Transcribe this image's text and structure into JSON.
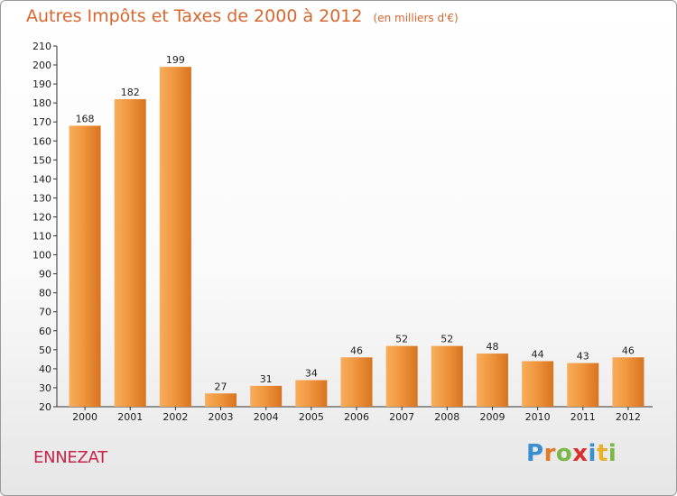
{
  "title": "Autres Impôts et Taxes de 2000 à 2012",
  "unit_note": "(en milliers d'€)",
  "commune": "ENNEZAT",
  "logo": [
    "P",
    "r",
    "o",
    "x",
    "i",
    "t",
    "i"
  ],
  "colors": {
    "bar": "#f0963f",
    "bar_light": "#f8ad5a",
    "bar_dark": "#d8741f",
    "title": "#d9662e",
    "commune": "#c8234b"
  },
  "chart_data": {
    "type": "bar",
    "title": "Autres Impôts et Taxes de 2000 à 2012",
    "subtitle": "(en milliers d'€)",
    "categories": [
      "2000",
      "2001",
      "2002",
      "2003",
      "2004",
      "2005",
      "2006",
      "2007",
      "2008",
      "2009",
      "2010",
      "2011",
      "2012"
    ],
    "values": [
      168,
      182,
      199,
      27,
      31,
      34,
      46,
      52,
      52,
      48,
      44,
      43,
      46
    ],
    "ylim": [
      20,
      210
    ],
    "yticks": [
      20,
      30,
      40,
      50,
      60,
      70,
      80,
      90,
      100,
      110,
      120,
      130,
      140,
      150,
      160,
      170,
      180,
      190,
      200,
      210
    ],
    "xlabel": "",
    "ylabel": "",
    "grid": false,
    "legend": "none"
  }
}
